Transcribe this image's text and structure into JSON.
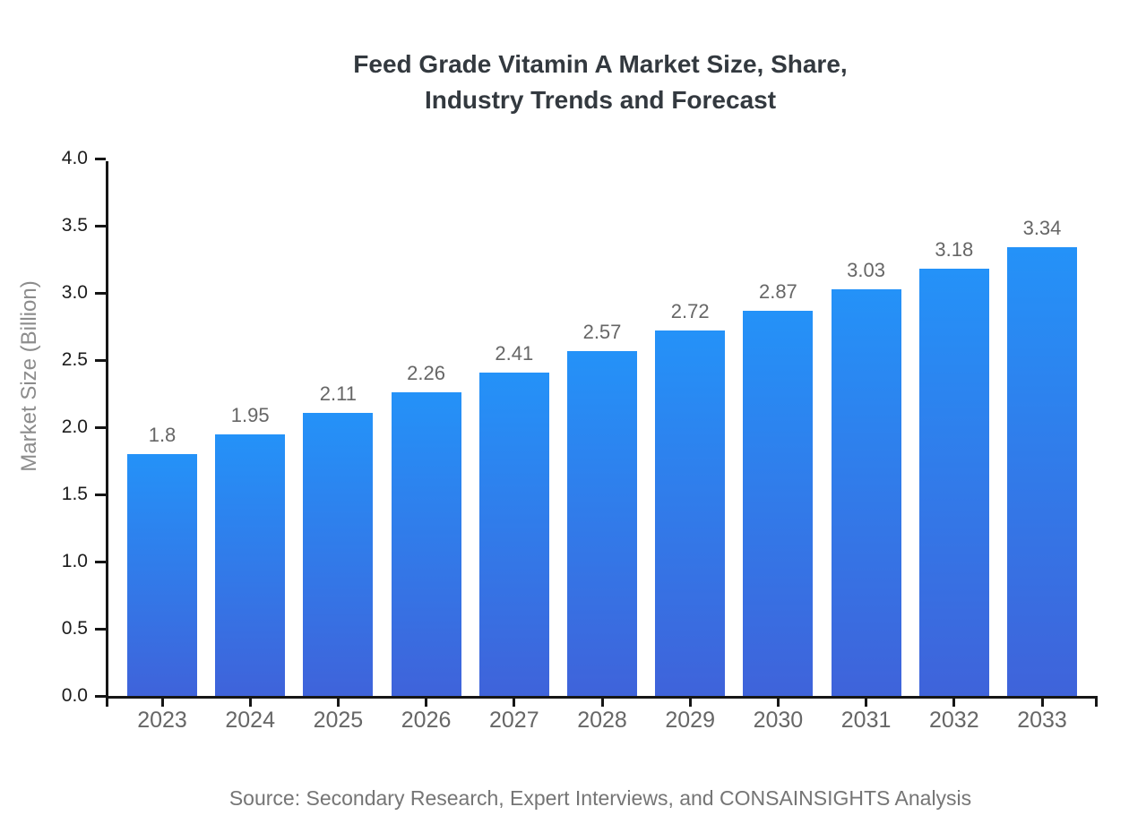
{
  "chart_data": {
    "type": "bar",
    "title_lines": [
      "Feed Grade Vitamin A Market Size, Share,",
      "Industry Trends and Forecast"
    ],
    "categories": [
      "2023",
      "2024",
      "2025",
      "2026",
      "2027",
      "2028",
      "2029",
      "2030",
      "2031",
      "2032",
      "2033"
    ],
    "values": [
      1.8,
      1.95,
      2.11,
      2.26,
      2.41,
      2.57,
      2.72,
      2.87,
      3.03,
      3.18,
      3.34
    ],
    "data_labels": [
      "1.8",
      "1.95",
      "2.11",
      "2.26",
      "2.41",
      "2.57",
      "2.72",
      "2.87",
      "3.03",
      "3.18",
      "3.34"
    ],
    "xlabel": "",
    "ylabel": "Market Size (Billion)",
    "ylim": [
      0,
      4
    ],
    "ytick_step": 0.5,
    "ytick_labels": [
      "0.0",
      "0.5",
      "1.0",
      "1.5",
      "2.0",
      "2.5",
      "3.0",
      "3.5",
      "4.0"
    ],
    "grid": false,
    "legend": null,
    "source": "Source: Secondary Research, Expert Interviews, and CONSAINSIGHTS Analysis",
    "colors": {
      "bar_gradient_top": "#2492f8",
      "bar_gradient_bottom": "#3f63da",
      "axis": "#161616",
      "title": "#33393f",
      "tick_label": "#666666",
      "ytick_label": "#1c1c1c",
      "axis_title": "#8c8c8c",
      "source_text": "#757575",
      "background": "#ffffff"
    }
  }
}
